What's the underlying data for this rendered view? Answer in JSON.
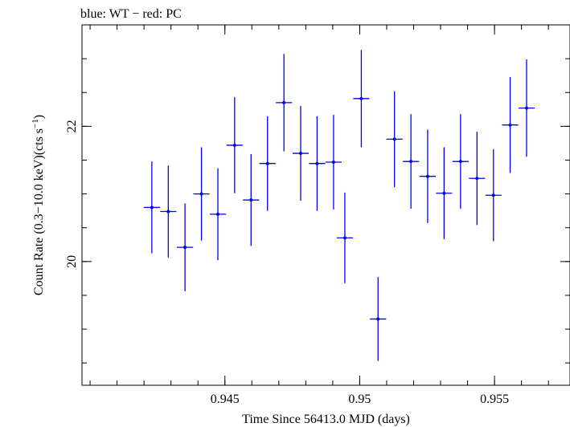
{
  "header": {
    "text": "blue: WT − red: PC"
  },
  "chart_data": {
    "type": "scatter",
    "xlabel": "Time Since 56413.0 MJD (days)",
    "ylabel_main": "Count Rate (0.3−10.0 keV)(cts s",
    "ylabel_sup": "−1",
    "ylabel_close": ")",
    "xlim": [
      0.9397,
      0.9578
    ],
    "ylim": [
      18.17,
      23.5
    ],
    "x_ticks": [
      {
        "value": 0.945,
        "label": "0.945"
      },
      {
        "value": 0.95,
        "label": "0.95"
      },
      {
        "value": 0.955,
        "label": "0.955"
      }
    ],
    "x_minor_step": 0.001,
    "y_ticks": [
      {
        "value": 20,
        "label": "20"
      },
      {
        "value": 22,
        "label": "22"
      }
    ],
    "y_minor_step": 0.5,
    "grid": false,
    "legend": "none",
    "series": [
      {
        "color": "#0000ee",
        "points": [
          {
            "x": 0.94229,
            "xerr": 0.0003,
            "y": 20.8,
            "yerr": 0.68
          },
          {
            "x": 0.9429,
            "xerr": 0.0003,
            "y": 20.74,
            "yerr": 0.68
          },
          {
            "x": 0.94352,
            "xerr": 0.0003,
            "y": 20.21,
            "yerr": 0.65
          },
          {
            "x": 0.94413,
            "xerr": 0.0003,
            "y": 21.0,
            "yerr": 0.69
          },
          {
            "x": 0.94474,
            "xerr": 0.0003,
            "y": 20.7,
            "yerr": 0.68
          },
          {
            "x": 0.94536,
            "xerr": 0.0003,
            "y": 21.72,
            "yerr": 0.71
          },
          {
            "x": 0.94597,
            "xerr": 0.0003,
            "y": 20.91,
            "yerr": 0.68
          },
          {
            "x": 0.94658,
            "xerr": 0.0003,
            "y": 21.45,
            "yerr": 0.7
          },
          {
            "x": 0.94719,
            "xerr": 0.0003,
            "y": 22.35,
            "yerr": 0.72
          },
          {
            "x": 0.94781,
            "xerr": 0.0003,
            "y": 21.6,
            "yerr": 0.7
          },
          {
            "x": 0.94842,
            "xerr": 0.0003,
            "y": 21.45,
            "yerr": 0.7
          },
          {
            "x": 0.94903,
            "xerr": 0.0003,
            "y": 21.47,
            "yerr": 0.7
          },
          {
            "x": 0.94945,
            "xerr": 0.0003,
            "y": 20.35,
            "yerr": 0.67
          },
          {
            "x": 0.95006,
            "xerr": 0.0003,
            "y": 22.41,
            "yerr": 0.72
          },
          {
            "x": 0.95068,
            "xerr": 0.0003,
            "y": 19.15,
            "yerr": 0.62
          },
          {
            "x": 0.95129,
            "xerr": 0.0003,
            "y": 21.81,
            "yerr": 0.71
          },
          {
            "x": 0.9519,
            "xerr": 0.0003,
            "y": 21.48,
            "yerr": 0.7
          },
          {
            "x": 0.95252,
            "xerr": 0.0003,
            "y": 21.26,
            "yerr": 0.69
          },
          {
            "x": 0.95313,
            "xerr": 0.0003,
            "y": 21.01,
            "yerr": 0.68
          },
          {
            "x": 0.95374,
            "xerr": 0.0003,
            "y": 21.48,
            "yerr": 0.7
          },
          {
            "x": 0.95435,
            "xerr": 0.0003,
            "y": 21.23,
            "yerr": 0.69
          },
          {
            "x": 0.95496,
            "xerr": 0.0003,
            "y": 20.98,
            "yerr": 0.68
          },
          {
            "x": 0.95558,
            "xerr": 0.0003,
            "y": 22.02,
            "yerr": 0.71
          },
          {
            "x": 0.95619,
            "xerr": 0.0003,
            "y": 22.27,
            "yerr": 0.72
          }
        ]
      }
    ]
  }
}
